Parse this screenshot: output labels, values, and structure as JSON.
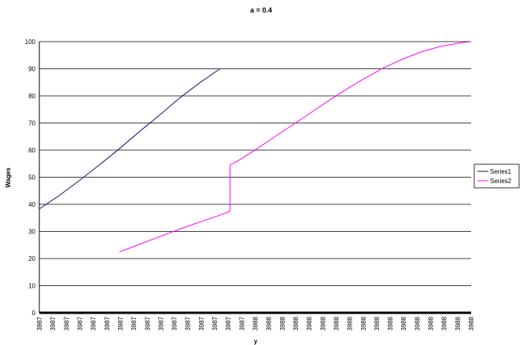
{
  "chart_data": {
    "type": "line",
    "title": "a = 0.4",
    "xlabel": "y",
    "ylabel": "Wages",
    "ylim": [
      0,
      100
    ],
    "yticks": [
      0,
      10,
      20,
      30,
      40,
      50,
      60,
      70,
      80,
      90,
      100
    ],
    "grid": true,
    "legend_placement": "right",
    "x_tick_labels": [
      "3987",
      "3987",
      "3987",
      "3987",
      "3987",
      "3987",
      "3987",
      "3987",
      "3987",
      "3987",
      "3987",
      "3987",
      "3987",
      "3987",
      "3987",
      "3987",
      "3988",
      "3988",
      "3988",
      "3988",
      "3988",
      "3988",
      "3988",
      "3988",
      "3988",
      "3988",
      "3988",
      "3988",
      "3988",
      "3988",
      "3988",
      "3988",
      "3988"
    ],
    "series": [
      {
        "name": "Series1",
        "color": "#1b1464",
        "points": [
          [
            0,
            38.3
          ],
          [
            2,
            43.3
          ],
          [
            4,
            48.8
          ],
          [
            6,
            54.6
          ],
          [
            8,
            60.6
          ],
          [
            10,
            66.9
          ],
          [
            12,
            73.0
          ],
          [
            14,
            79.3
          ],
          [
            16,
            84.9
          ],
          [
            18,
            90
          ]
        ]
      },
      {
        "name": "Series2",
        "color": "#ff00ff",
        "points": [
          [
            8,
            22.5
          ],
          [
            10,
            25.3
          ],
          [
            12,
            28.1
          ],
          [
            14,
            30.9
          ],
          [
            16,
            33.5
          ],
          [
            18,
            36.0
          ],
          [
            19,
            37.5
          ],
          [
            19,
            54.5
          ],
          [
            20,
            56.5
          ],
          [
            22,
            61.3
          ],
          [
            24,
            66.3
          ],
          [
            26,
            71.2
          ],
          [
            28,
            76.2
          ],
          [
            30,
            81.1
          ],
          [
            32,
            85.6
          ],
          [
            34,
            89.8
          ],
          [
            36,
            93.3
          ],
          [
            38,
            96.2
          ],
          [
            40,
            98.3
          ],
          [
            42,
            99.6
          ],
          [
            43,
            100
          ]
        ]
      }
    ]
  }
}
